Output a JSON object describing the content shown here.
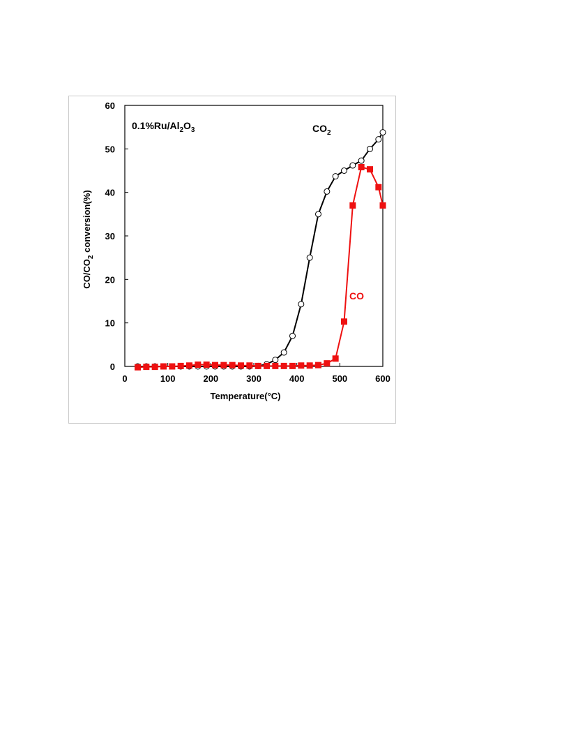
{
  "chart_data": {
    "type": "line",
    "xlabel": "Temperature(°C)",
    "ylabel_parts": [
      "CO/CO",
      "2",
      " conversion(%)"
    ],
    "xlim": [
      0,
      600
    ],
    "ylim": [
      0,
      60
    ],
    "xticks": [
      0,
      100,
      200,
      300,
      400,
      500,
      600
    ],
    "yticks": [
      0,
      10,
      20,
      30,
      40,
      50,
      60
    ],
    "grid": false,
    "annotations": {
      "catalyst": {
        "parts": [
          "0.1%Ru/Al",
          "2",
          "O",
          "3"
        ]
      },
      "co2": {
        "parts": [
          "CO",
          "2"
        ]
      },
      "co": {
        "parts": [
          "CO"
        ]
      }
    },
    "series": [
      {
        "id": "co2",
        "color": "#000000",
        "marker": "open-circle",
        "x": [
          30,
          50,
          70,
          90,
          110,
          130,
          150,
          170,
          190,
          210,
          230,
          250,
          270,
          290,
          310,
          330,
          350,
          370,
          390,
          410,
          430,
          450,
          470,
          490,
          510,
          530,
          550,
          570,
          590,
          600
        ],
        "y": [
          0,
          0,
          0,
          0,
          0,
          0,
          0,
          0,
          0,
          0,
          0,
          0,
          0,
          0,
          0.1,
          0.5,
          1.5,
          3.2,
          7,
          14.3,
          25,
          35,
          40.2,
          43.7,
          45,
          46.2,
          47.3,
          50,
          52.2,
          53.8
        ]
      },
      {
        "id": "co",
        "color": "#ee1111",
        "marker": "filled-square",
        "x": [
          30,
          50,
          70,
          90,
          110,
          130,
          150,
          170,
          190,
          210,
          230,
          250,
          270,
          290,
          310,
          330,
          350,
          370,
          390,
          410,
          430,
          450,
          470,
          490,
          510,
          530,
          550,
          570,
          590,
          600
        ],
        "y": [
          -0.2,
          -0.1,
          -0.1,
          0,
          0,
          0.1,
          0.2,
          0.4,
          0.4,
          0.3,
          0.3,
          0.3,
          0.2,
          0.2,
          0.1,
          0.1,
          0.1,
          0.1,
          0.1,
          0.2,
          0.2,
          0.3,
          0.7,
          1.8,
          10.3,
          37,
          45.8,
          45.3,
          41.2,
          37
        ]
      }
    ]
  }
}
